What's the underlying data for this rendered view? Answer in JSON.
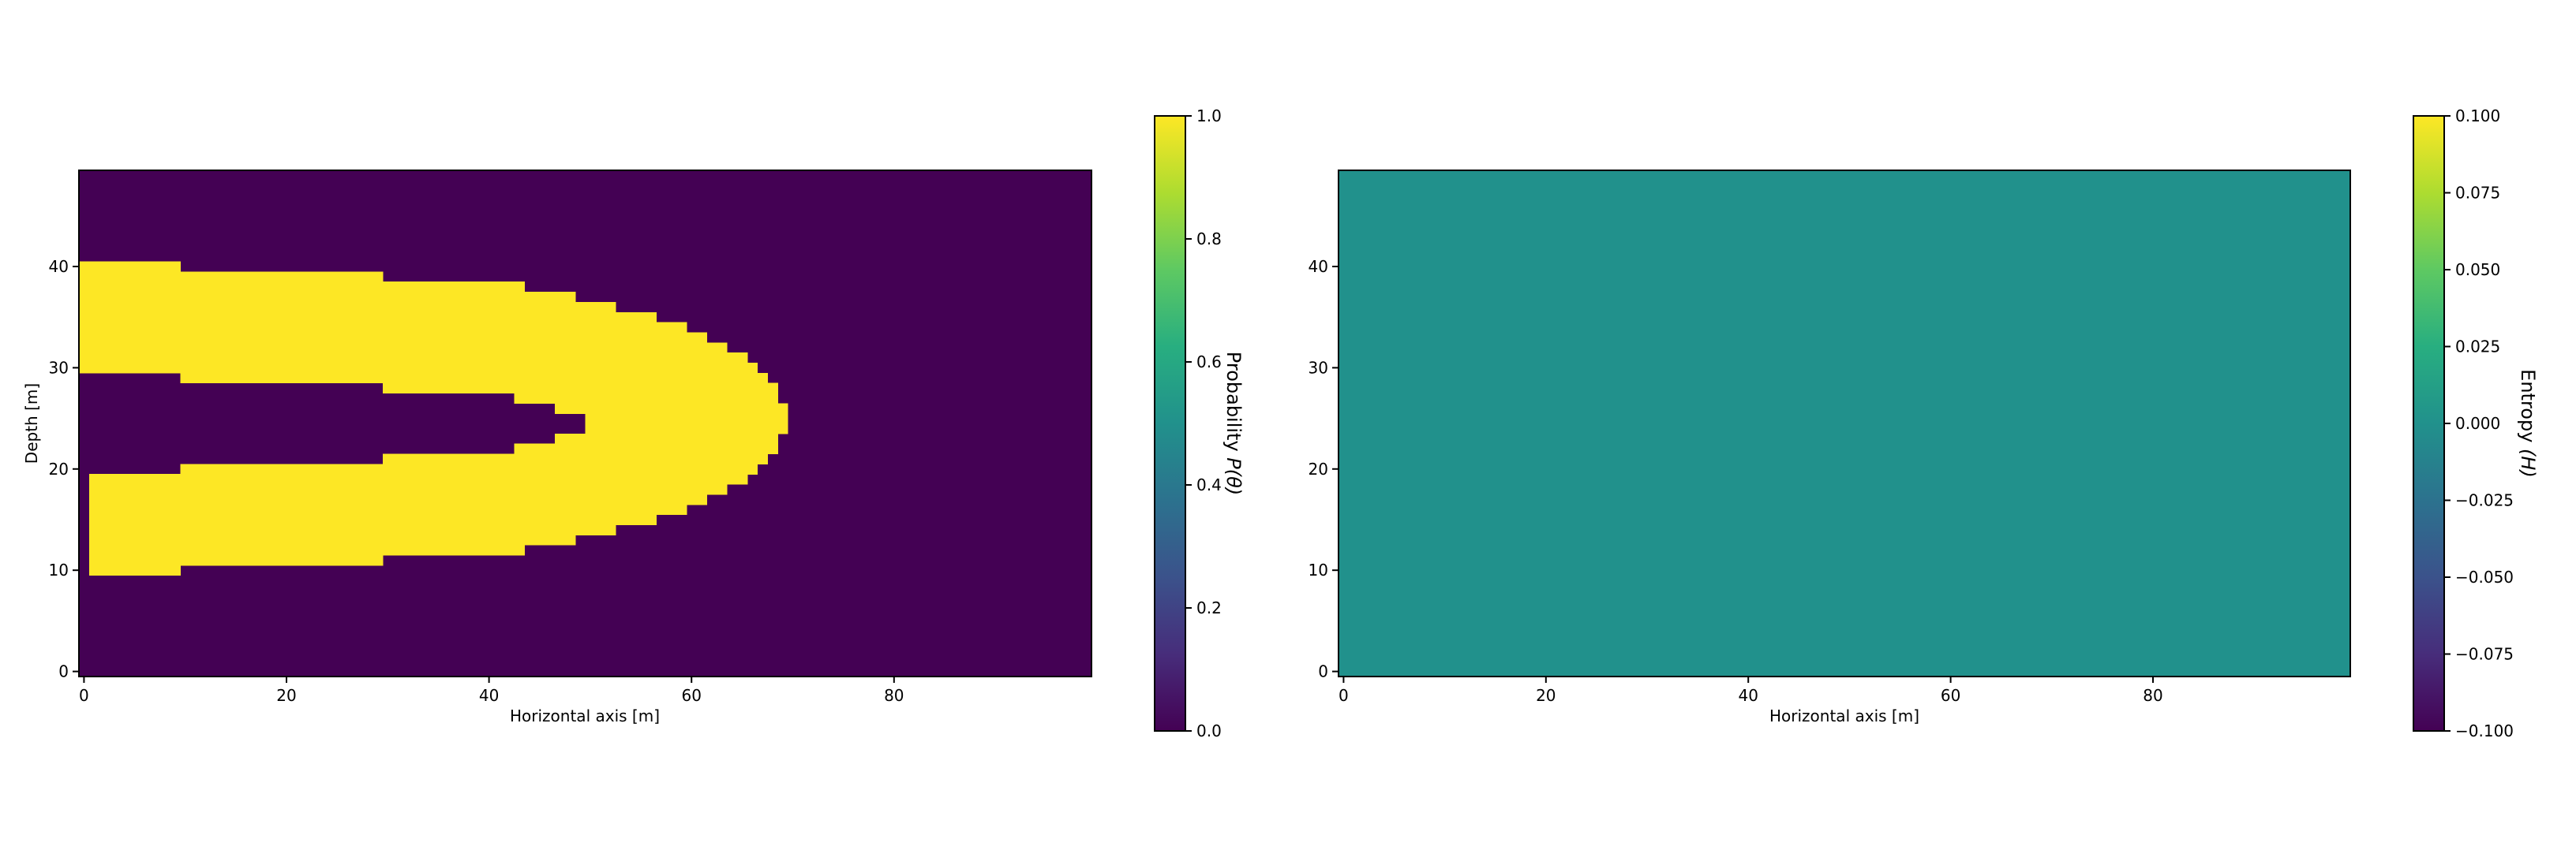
{
  "chart_data": [
    {
      "type": "heatmap",
      "title": "",
      "xlabel": "Horizontal axis [m]",
      "ylabel": "Depth [m]",
      "xlim": [
        -0.5,
        99.5
      ],
      "ylim": [
        -0.5,
        49.5
      ],
      "xticks": [
        0,
        20,
        40,
        60,
        80
      ],
      "yticks": [
        0,
        10,
        20,
        30,
        40
      ],
      "grid": false,
      "colormap": "viridis",
      "background_value": 0,
      "cell_value": 1,
      "yellow_row_spans": [
        {
          "y": 10,
          "x_ranges": [
            [
              1,
              9
            ]
          ]
        },
        {
          "y": 11,
          "x_ranges": [
            [
              1,
              29
            ]
          ]
        },
        {
          "y": 12,
          "x_ranges": [
            [
              1,
              43
            ]
          ]
        },
        {
          "y": 13,
          "x_ranges": [
            [
              1,
              48
            ]
          ]
        },
        {
          "y": 14,
          "x_ranges": [
            [
              1,
              52
            ]
          ]
        },
        {
          "y": 15,
          "x_ranges": [
            [
              1,
              56
            ]
          ]
        },
        {
          "y": 16,
          "x_ranges": [
            [
              1,
              59
            ]
          ]
        },
        {
          "y": 17,
          "x_ranges": [
            [
              1,
              61
            ]
          ]
        },
        {
          "y": 18,
          "x_ranges": [
            [
              1,
              63
            ]
          ]
        },
        {
          "y": 19,
          "x_ranges": [
            [
              1,
              65
            ]
          ]
        },
        {
          "y": 20,
          "x_ranges": [
            [
              10,
              66
            ]
          ]
        },
        {
          "y": 21,
          "x_ranges": [
            [
              30,
              67
            ]
          ]
        },
        {
          "y": 22,
          "x_ranges": [
            [
              43,
              68
            ]
          ]
        },
        {
          "y": 23,
          "x_ranges": [
            [
              47,
              68
            ]
          ]
        },
        {
          "y": 24,
          "x_ranges": [
            [
              50,
              69
            ]
          ]
        },
        {
          "y": 25,
          "x_ranges": [
            [
              50,
              69
            ]
          ]
        },
        {
          "y": 26,
          "x_ranges": [
            [
              47,
              69
            ]
          ]
        },
        {
          "y": 27,
          "x_ranges": [
            [
              43,
              68
            ]
          ]
        },
        {
          "y": 28,
          "x_ranges": [
            [
              30,
              68
            ]
          ]
        },
        {
          "y": 29,
          "x_ranges": [
            [
              10,
              67
            ]
          ]
        },
        {
          "y": 30,
          "x_ranges": [
            [
              0,
              66
            ]
          ]
        },
        {
          "y": 31,
          "x_ranges": [
            [
              0,
              65
            ]
          ]
        },
        {
          "y": 32,
          "x_ranges": [
            [
              0,
              63
            ]
          ]
        },
        {
          "y": 33,
          "x_ranges": [
            [
              0,
              61
            ]
          ]
        },
        {
          "y": 34,
          "x_ranges": [
            [
              0,
              59
            ]
          ]
        },
        {
          "y": 35,
          "x_ranges": [
            [
              0,
              56
            ]
          ]
        },
        {
          "y": 36,
          "x_ranges": [
            [
              0,
              52
            ]
          ]
        },
        {
          "y": 37,
          "x_ranges": [
            [
              0,
              48
            ]
          ]
        },
        {
          "y": 38,
          "x_ranges": [
            [
              0,
              43
            ]
          ]
        },
        {
          "y": 39,
          "x_ranges": [
            [
              0,
              29
            ]
          ]
        },
        {
          "y": 40,
          "x_ranges": [
            [
              0,
              9
            ]
          ]
        }
      ],
      "colorbar": {
        "label": "Probability P(θ)",
        "label_prefix": "Probability ",
        "label_symbol": "P(θ)",
        "range": [
          0.0,
          1.0
        ],
        "ticks": [
          "0.0",
          "0.2",
          "0.4",
          "0.6",
          "0.8",
          "1.0"
        ]
      }
    },
    {
      "type": "heatmap",
      "title": "",
      "xlabel": "Horizontal axis [m]",
      "ylabel": "",
      "xlim": [
        -0.5,
        99.5
      ],
      "ylim": [
        -0.5,
        49.5
      ],
      "xticks": [
        0,
        20,
        40,
        60,
        80
      ],
      "yticks": [
        0,
        10,
        20,
        30,
        40
      ],
      "grid": false,
      "colormap": "viridis",
      "uniform_value": 0.0,
      "fill_color": "#21918c",
      "colorbar": {
        "label": "Entropy (H)",
        "label_prefix": "Entropy ",
        "label_symbol": "(H)",
        "range": [
          -0.1,
          0.1
        ],
        "ticks": [
          "−0.100",
          "−0.075",
          "−0.050",
          "−0.025",
          "0.000",
          "0.025",
          "0.050",
          "0.075",
          "0.100"
        ]
      }
    }
  ],
  "colors": {
    "viridis_low": "#440154",
    "viridis_mid": "#21918c",
    "viridis_high": "#fde725"
  }
}
